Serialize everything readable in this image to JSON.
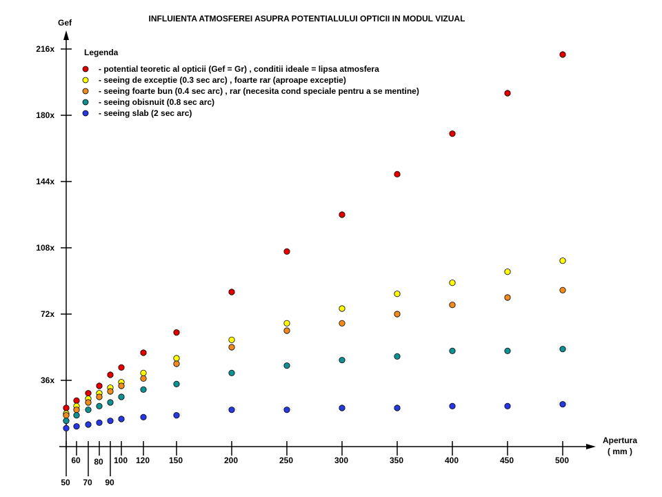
{
  "chart_data": {
    "type": "scatter",
    "title": "INFLUIENTA ATMOSFEREI ASUPRA POTENTIALULUI OPTICII IN MODUL VIZUAL",
    "ylabel": "Gef",
    "xlabel_line1": "Apertura",
    "xlabel_line2": "( mm )",
    "xlabel": "Apertura ( mm )",
    "ylim": [
      0,
      216
    ],
    "y_ticks": [
      {
        "value": 36,
        "label": "36x"
      },
      {
        "value": 72,
        "label": "72x"
      },
      {
        "value": 108,
        "label": "108x"
      },
      {
        "value": 144,
        "label": "144x"
      },
      {
        "value": 180,
        "label": "180x"
      },
      {
        "value": 216,
        "label": "216x"
      }
    ],
    "x_ticks": [
      {
        "value": 50,
        "label": "50",
        "row": "low"
      },
      {
        "value": 60,
        "label": "60",
        "row": "high"
      },
      {
        "value": 70,
        "label": "70",
        "row": "low"
      },
      {
        "value": 80,
        "label": "80",
        "row": "mid"
      },
      {
        "value": 90,
        "label": "90",
        "row": "low"
      },
      {
        "value": 100,
        "label": "100",
        "row": "high"
      },
      {
        "value": 120,
        "label": "120",
        "row": "high"
      },
      {
        "value": 150,
        "label": "150",
        "row": "high"
      },
      {
        "value": 200,
        "label": "200",
        "row": "high"
      },
      {
        "value": 250,
        "label": "250",
        "row": "high"
      },
      {
        "value": 300,
        "label": "300",
        "row": "high"
      },
      {
        "value": 350,
        "label": "350",
        "row": "high"
      },
      {
        "value": 400,
        "label": "400",
        "row": "high"
      },
      {
        "value": 450,
        "label": "450",
        "row": "high"
      },
      {
        "value": 500,
        "label": "500",
        "row": "high"
      }
    ],
    "x": [
      50,
      60,
      70,
      80,
      90,
      100,
      120,
      150,
      200,
      250,
      300,
      350,
      400,
      450,
      500
    ],
    "legend_title": "Legenda",
    "legend_position": "top-left",
    "series": [
      {
        "name": "-  potential teoretic al opticii (Gef = Gr) ,  conditii ideale = lipsa atmosfera",
        "color": "#e00000",
        "values": [
          21,
          25,
          29,
          33,
          39,
          43,
          51,
          62,
          84,
          106,
          126,
          148,
          170,
          192,
          213
        ]
      },
      {
        "name": "-  seeing de exceptie (0.3 sec arc) , foarte rar (aproape exceptie)",
        "color": "#ffff00",
        "values": [
          18,
          22,
          26,
          29,
          32,
          35,
          40,
          48,
          58,
          67,
          75,
          83,
          89,
          95,
          101
        ]
      },
      {
        "name": "-  seeing foarte bun (0.4 sec arc) , rar (necesita cond speciale pentru a se mentine)",
        "color": "#f08c1e",
        "values": [
          17,
          20,
          24,
          27,
          30,
          33,
          37,
          45,
          54,
          63,
          67,
          72,
          77,
          81,
          85
        ]
      },
      {
        "name": "-  seeing obisnuit (0.8 sec arc)",
        "color": "#109090",
        "values": [
          14,
          17,
          20,
          22,
          24,
          27,
          31,
          34,
          40,
          44,
          47,
          49,
          52,
          52,
          53
        ]
      },
      {
        "name": "-  seeing slab (2 sec arc)",
        "color": "#2838e0",
        "values": [
          10,
          11,
          12,
          13,
          14,
          15,
          16,
          17,
          20,
          20,
          21,
          21,
          22,
          22,
          23
        ]
      }
    ]
  }
}
